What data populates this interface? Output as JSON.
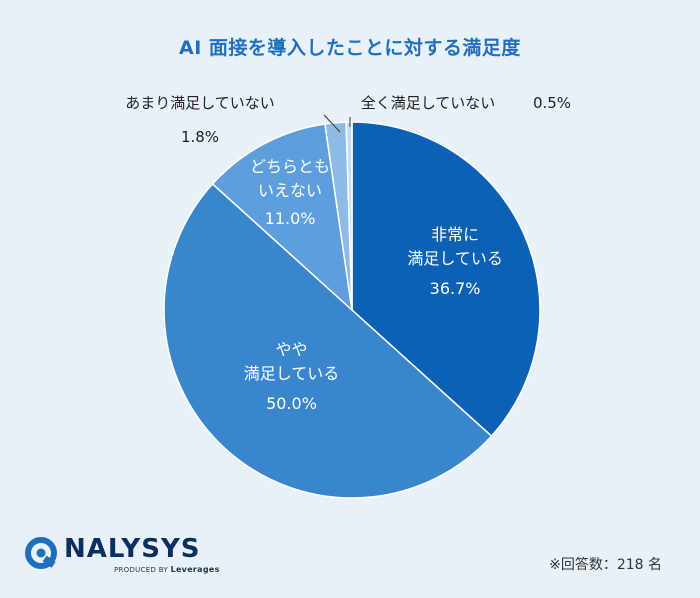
{
  "chart_data": {
    "type": "pie",
    "title": "AI 面接を導入したことに対する満足度",
    "slices": [
      {
        "label": "非常に満足している",
        "lines": [
          "非常に",
          "満足している"
        ],
        "value": 36.7,
        "value_label": "36.7%",
        "color": "#0d61b5"
      },
      {
        "label": "やや満足している",
        "lines": [
          "やや",
          "満足している"
        ],
        "value": 50.0,
        "value_label": "50.0%",
        "color": "#3a86cc"
      },
      {
        "label": "どちらともいえない",
        "lines": [
          "どちらとも",
          "いえない"
        ],
        "value": 11.0,
        "value_label": "11.0%",
        "color": "#5f9edc"
      },
      {
        "label": "あまり満足していない",
        "lines": [
          "あまり満足していない"
        ],
        "value": 1.8,
        "value_label": "1.8%",
        "color": "#8ebbe6"
      },
      {
        "label": "全く満足していない",
        "lines": [
          "全く満足していない"
        ],
        "value": 0.5,
        "value_label": "0.5%",
        "color": "#c3dcf3"
      }
    ]
  },
  "logo": {
    "name": "NALYSYS",
    "sub_prefix": "PRODUCED BY",
    "sub_brand": "Leverages"
  },
  "note": "※回答数：218 名"
}
